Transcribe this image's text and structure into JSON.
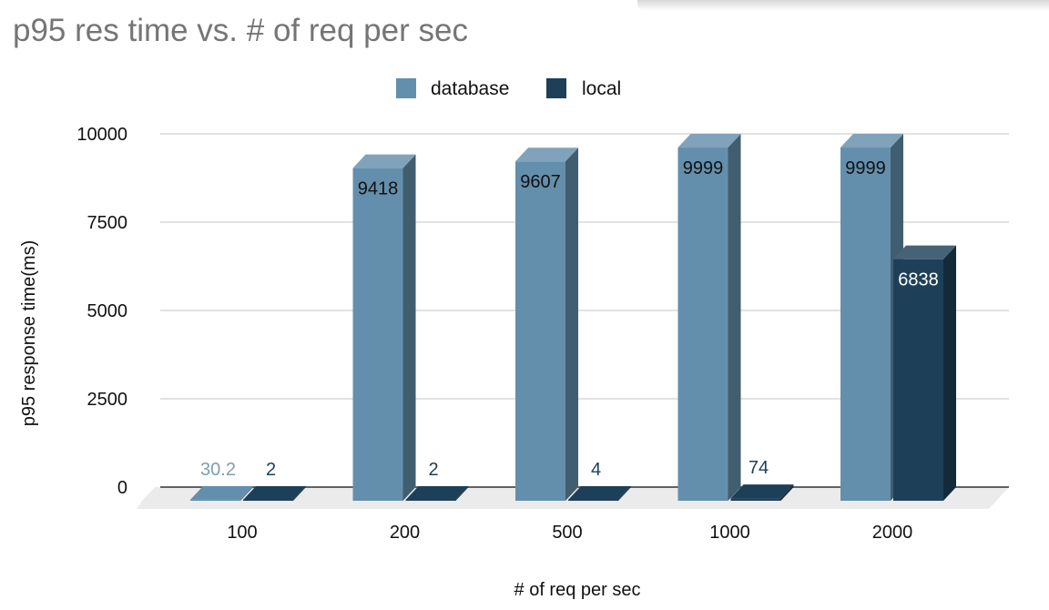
{
  "chart_data": {
    "type": "bar",
    "title": "p95 res time vs. # of req per sec",
    "xlabel": "# of req per sec",
    "ylabel": "p95 response time(ms)",
    "categories": [
      "100",
      "200",
      "500",
      "1000",
      "2000"
    ],
    "series": [
      {
        "name": "database",
        "values": [
          30.2,
          9418,
          9607,
          9999,
          9999
        ],
        "labels": [
          "30.2",
          "9418",
          "9607",
          "9999",
          "9999"
        ],
        "color": "#648fac"
      },
      {
        "name": "local",
        "values": [
          2,
          2,
          4,
          74,
          6838
        ],
        "labels": [
          "2",
          "2",
          "4",
          "74",
          "6838"
        ],
        "color": "#1d4058"
      }
    ],
    "ylim": [
      0,
      10000
    ],
    "yticks": [
      "0",
      "2500",
      "5000",
      "7500",
      "10000"
    ],
    "grid": true,
    "legend": "top-center",
    "style": "3d-column"
  }
}
